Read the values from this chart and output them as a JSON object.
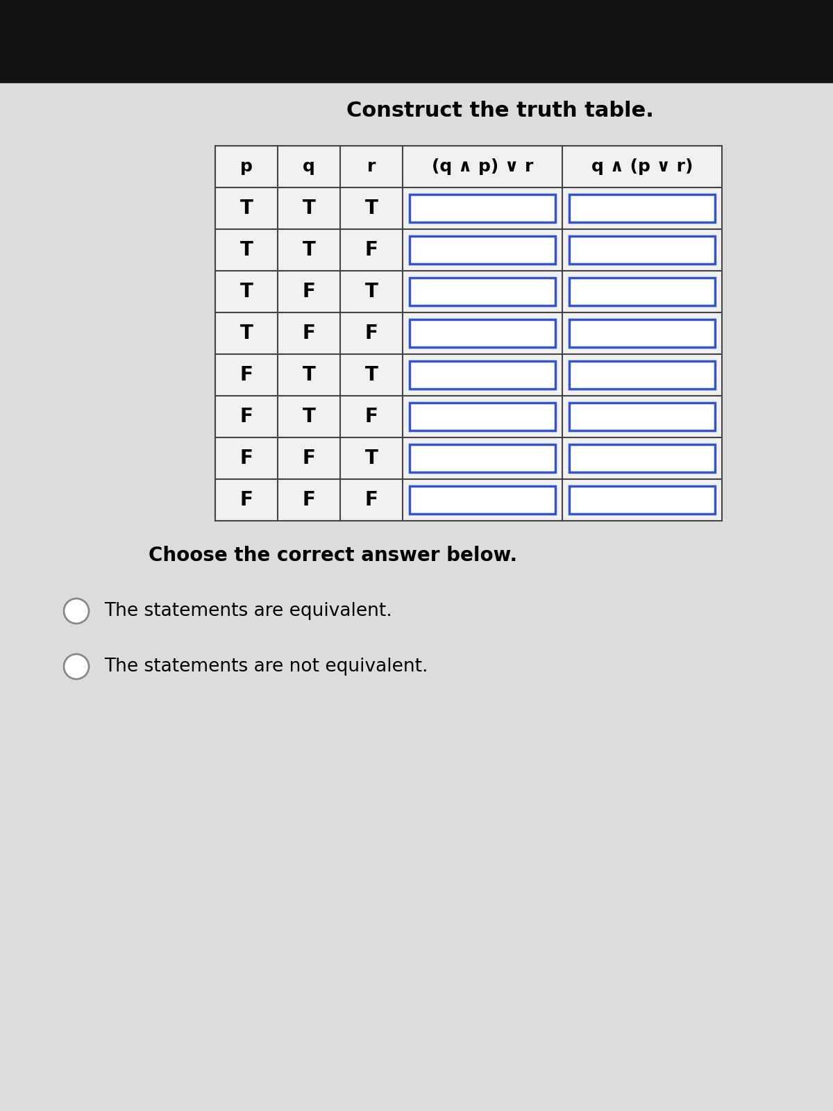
{
  "title": "Construct the truth table.",
  "bg_top": "#111111",
  "bg_main": "#d8d8d8",
  "table_bg": "#e8e8e8",
  "headers": [
    "p",
    "q",
    "r",
    "(q ∧ p) ∨ r",
    "q ∧ (p ∨ r)"
  ],
  "rows": [
    [
      "T",
      "T",
      "T",
      "",
      ""
    ],
    [
      "T",
      "T",
      "F",
      "",
      ""
    ],
    [
      "T",
      "F",
      "T",
      "",
      ""
    ],
    [
      "T",
      "F",
      "F",
      "",
      ""
    ],
    [
      "F",
      "T",
      "T",
      "",
      ""
    ],
    [
      "F",
      "T",
      "F",
      "",
      ""
    ],
    [
      "F",
      "F",
      "T",
      "",
      ""
    ],
    [
      "F",
      "F",
      "F",
      "",
      ""
    ]
  ],
  "answer_section_title": "Choose the correct answer below.",
  "option1": "The statements are equivalent.",
  "option2": "The statements are not equivalent.",
  "answer_fontsize": 18,
  "cell_fontsize": 20,
  "header_fontsize": 18,
  "input_cell_color": "#3030aa",
  "table_border_color": "#555555",
  "answer_circle_color": "#888888"
}
